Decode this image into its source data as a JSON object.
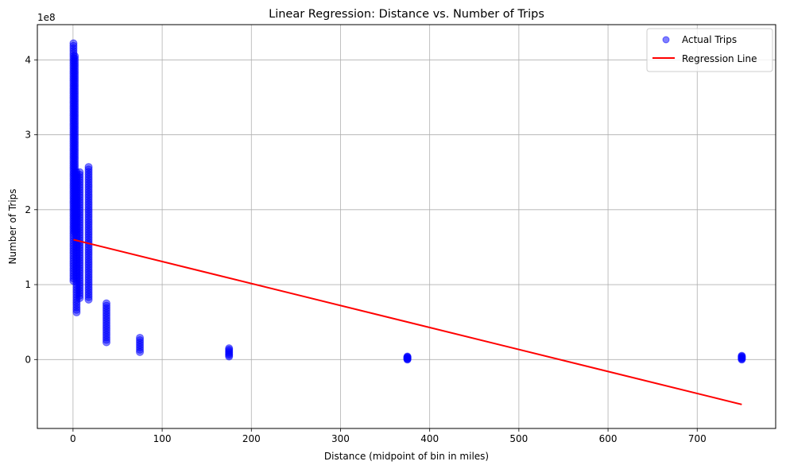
{
  "chart_data": {
    "type": "scatter",
    "title": "Linear Regression: Distance vs. Number of Trips",
    "xlabel": "Distance (midpoint of bin in miles)",
    "ylabel": "Number of Trips",
    "y_offset_label": "1e8",
    "xlim": [
      -40,
      788
    ],
    "ylim": [
      -0.92,
      4.47
    ],
    "y_unit_scale": 100000000,
    "x_ticks": [
      0,
      100,
      200,
      300,
      400,
      500,
      600,
      700
    ],
    "x_tick_labels": [
      "0",
      "100",
      "200",
      "300",
      "400",
      "500",
      "600",
      "700"
    ],
    "y_ticks": [
      0,
      1,
      2,
      3,
      4
    ],
    "y_tick_labels": [
      "0",
      "1",
      "2",
      "3",
      "4"
    ],
    "grid": true,
    "legend_position": "top-right",
    "colors": {
      "scatter": "#0000ff",
      "regression": "#ff0000",
      "grid": "#b0b0b0"
    },
    "series": [
      {
        "name": "Actual Trips",
        "kind": "scatter",
        "clusters": [
          {
            "x": 0.5,
            "y_min": 1.05,
            "y_max": 4.22
          },
          {
            "x": 2.0,
            "y_min": 1.7,
            "y_max": 4.05
          },
          {
            "x": 4.0,
            "y_min": 0.63,
            "y_max": 2.5
          },
          {
            "x": 7.5,
            "y_min": 0.82,
            "y_max": 2.5
          },
          {
            "x": 17.5,
            "y_min": 0.8,
            "y_max": 2.57
          },
          {
            "x": 37.5,
            "y_min": 0.23,
            "y_max": 0.75
          },
          {
            "x": 75,
            "y_min": 0.1,
            "y_max": 0.29
          },
          {
            "x": 175,
            "y_min": 0.04,
            "y_max": 0.15
          },
          {
            "x": 375,
            "y_min": 0.0,
            "y_max": 0.04
          },
          {
            "x": 750,
            "y_min": 0.0,
            "y_max": 0.05
          }
        ]
      },
      {
        "name": "Regression Line",
        "kind": "line",
        "x": [
          0.5,
          750
        ],
        "y": [
          1.6,
          -0.6
        ]
      }
    ]
  }
}
